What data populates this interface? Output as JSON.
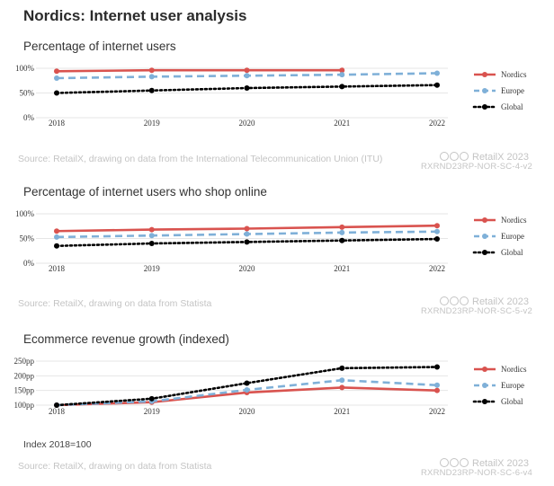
{
  "page_title": "Nordics: Internet user analysis",
  "colors": {
    "nordics": "#d9534f",
    "europe": "#7fb0d8",
    "global": "#000000",
    "grid": "#e6e6e6"
  },
  "chart_data": [
    {
      "type": "line",
      "title": "Percentage of internet users",
      "x": [
        "2018",
        "2019",
        "2020",
        "2021",
        "2022"
      ],
      "ylim": [
        0,
        100
      ],
      "yticks": [
        "0%",
        "50%",
        "100%"
      ],
      "ytick_values": [
        0,
        50,
        100
      ],
      "series": [
        {
          "name": "Nordics",
          "style": "solid",
          "values": [
            94,
            96,
            96,
            96,
            null
          ]
        },
        {
          "name": "Europe",
          "style": "dashed",
          "values": [
            80,
            83,
            85,
            87,
            90
          ]
        },
        {
          "name": "Global",
          "style": "dotted",
          "values": [
            50,
            55,
            60,
            63,
            66
          ]
        }
      ],
      "source": "Source: RetailX, drawing on data from the International Telecommunication Union (ITU)",
      "brand": "RetailX 2023",
      "code": "RXRND23RP-NOR-SC-4-v2"
    },
    {
      "type": "line",
      "title": "Percentage of internet users who shop online",
      "x": [
        "2018",
        "2019",
        "2020",
        "2021",
        "2022"
      ],
      "ylim": [
        0,
        100
      ],
      "yticks": [
        "0%",
        "50%",
        "100%"
      ],
      "ytick_values": [
        0,
        50,
        100
      ],
      "series": [
        {
          "name": "Nordics",
          "style": "solid",
          "values": [
            65,
            68,
            70,
            73,
            76
          ]
        },
        {
          "name": "Europe",
          "style": "dashed",
          "values": [
            53,
            56,
            59,
            62,
            64
          ]
        },
        {
          "name": "Global",
          "style": "dotted",
          "values": [
            35,
            40,
            43,
            46,
            49
          ]
        }
      ],
      "source": "Source: RetailX, drawing on data from Statista",
      "brand": "RetailX 2023",
      "code": "RXRND23RP-NOR-SC-5-v2"
    },
    {
      "type": "line",
      "title": "Ecommerce revenue growth (indexed)",
      "x": [
        "2018",
        "2019",
        "2020",
        "2021",
        "2022"
      ],
      "ylim": [
        100,
        250
      ],
      "yticks": [
        "100pp",
        "150pp",
        "200pp",
        "250pp"
      ],
      "ytick_values": [
        100,
        150,
        200,
        250
      ],
      "series": [
        {
          "name": "Nordics",
          "style": "solid",
          "values": [
            100,
            110,
            143,
            160,
            150
          ]
        },
        {
          "name": "Europe",
          "style": "dashed",
          "values": [
            100,
            113,
            152,
            185,
            168
          ]
        },
        {
          "name": "Global",
          "style": "dotted",
          "values": [
            100,
            122,
            175,
            226,
            230
          ]
        }
      ],
      "note": "Index 2018=100",
      "source": "Source: RetailX, drawing on data from Statista",
      "brand": "RetailX 2023",
      "code": "RXRND23RP-NOR-SC-6-v4"
    }
  ]
}
